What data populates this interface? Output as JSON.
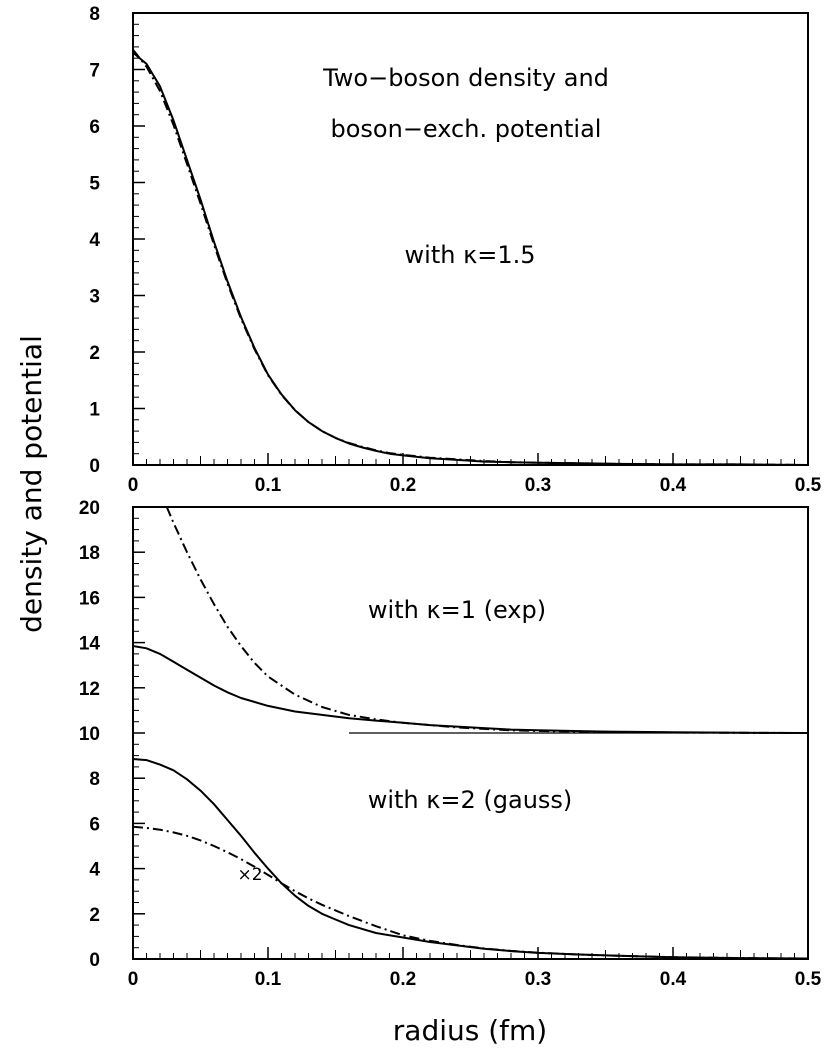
{
  "figure": {
    "ylabel": "density and potential",
    "xlabel": "radius (fm)"
  },
  "chart_data": [
    {
      "type": "line",
      "panel": "top",
      "xlim": [
        0,
        0.5
      ],
      "ylim": [
        0,
        8
      ],
      "xticks": [
        "0",
        "0.1",
        "0.2",
        "0.3",
        "0.4",
        "0.5"
      ],
      "yticks": [
        "0",
        "1",
        "2",
        "3",
        "4",
        "5",
        "6",
        "7",
        "8"
      ],
      "annotations": [
        "Two−boson density and",
        "boson−exch. potential",
        "with κ=1.5"
      ],
      "series": [
        {
          "style": "solid",
          "x": [
            0,
            0.01,
            0.02,
            0.03,
            0.04,
            0.05,
            0.06,
            0.07,
            0.08,
            0.09,
            0.1,
            0.11,
            0.12,
            0.13,
            0.14,
            0.15,
            0.16,
            0.17,
            0.18,
            0.19,
            0.2,
            0.22,
            0.24,
            0.26,
            0.28,
            0.3,
            0.33,
            0.36,
            0.4,
            0.45,
            0.5
          ],
          "y": [
            7.3,
            7.1,
            6.7,
            6.1,
            5.4,
            4.7,
            3.95,
            3.25,
            2.62,
            2.07,
            1.6,
            1.25,
            0.97,
            0.76,
            0.6,
            0.48,
            0.38,
            0.31,
            0.25,
            0.2,
            0.17,
            0.12,
            0.09,
            0.06,
            0.05,
            0.04,
            0.03,
            0.02,
            0.01,
            0.01,
            0
          ]
        },
        {
          "style": "dash-dot",
          "x": [
            0,
            0.01,
            0.02,
            0.03,
            0.04,
            0.05,
            0.06,
            0.07,
            0.08,
            0.09,
            0.1,
            0.11,
            0.12,
            0.13,
            0.14,
            0.15,
            0.16,
            0.17,
            0.18,
            0.19,
            0.2,
            0.22,
            0.24,
            0.26,
            0.28,
            0.3,
            0.33,
            0.36,
            0.4,
            0.45,
            0.5
          ],
          "y": [
            7.35,
            7.05,
            6.62,
            6.02,
            5.33,
            4.63,
            3.9,
            3.21,
            2.59,
            2.05,
            1.59,
            1.24,
            0.97,
            0.76,
            0.6,
            0.48,
            0.39,
            0.32,
            0.26,
            0.21,
            0.18,
            0.13,
            0.1,
            0.07,
            0.05,
            0.04,
            0.03,
            0.02,
            0.01,
            0.01,
            0
          ]
        }
      ]
    },
    {
      "type": "line",
      "panel": "bottom",
      "xlim": [
        0,
        0.5
      ],
      "ylim": [
        0,
        20
      ],
      "xticks": [
        "0",
        "0.1",
        "0.2",
        "0.3",
        "0.4",
        "0.5"
      ],
      "yticks": [
        "0",
        "2",
        "4",
        "6",
        "8",
        "10",
        "12",
        "14",
        "16",
        "18",
        "20"
      ],
      "annotations": [
        "with κ=1 (exp)",
        "with κ=2 (gauss)",
        "×2"
      ],
      "series": [
        {
          "style": "solid",
          "group": "exp",
          "x": [
            0,
            0.01,
            0.02,
            0.03,
            0.04,
            0.05,
            0.06,
            0.07,
            0.08,
            0.1,
            0.12,
            0.14,
            0.16,
            0.18,
            0.2,
            0.22,
            0.25,
            0.28,
            0.3,
            0.35,
            0.4,
            0.45,
            0.5
          ],
          "y": [
            13.85,
            13.75,
            13.5,
            13.15,
            12.8,
            12.45,
            12.1,
            11.8,
            11.55,
            11.2,
            10.95,
            10.8,
            10.65,
            10.55,
            10.45,
            10.35,
            10.25,
            10.15,
            10.12,
            10.06,
            10.03,
            10.01,
            10.0
          ]
        },
        {
          "style": "dash-dot",
          "group": "exp",
          "x": [
            0.025,
            0.03,
            0.04,
            0.05,
            0.06,
            0.07,
            0.08,
            0.09,
            0.1,
            0.12,
            0.14,
            0.16,
            0.18,
            0.2,
            0.22,
            0.24,
            0.26,
            0.28,
            0.3,
            0.35,
            0.4,
            0.45,
            0.5
          ],
          "y": [
            20.0,
            19.3,
            18.0,
            16.8,
            15.7,
            14.7,
            13.85,
            13.1,
            12.5,
            11.7,
            11.15,
            10.8,
            10.6,
            10.45,
            10.35,
            10.25,
            10.18,
            10.12,
            10.09,
            10.05,
            10.02,
            10.01,
            10.0
          ]
        },
        {
          "style": "thin-solid",
          "group": "exp-asymptote",
          "x": [
            0.16,
            0.5
          ],
          "y": [
            10.0,
            10.0
          ]
        },
        {
          "style": "solid",
          "group": "gauss",
          "x": [
            0,
            0.01,
            0.02,
            0.03,
            0.04,
            0.05,
            0.06,
            0.07,
            0.08,
            0.09,
            0.1,
            0.11,
            0.12,
            0.13,
            0.14,
            0.15,
            0.16,
            0.18,
            0.2,
            0.22,
            0.24,
            0.26,
            0.28,
            0.3,
            0.33,
            0.36,
            0.4,
            0.45,
            0.5
          ],
          "y": [
            8.85,
            8.8,
            8.6,
            8.35,
            7.95,
            7.45,
            6.85,
            6.15,
            5.45,
            4.7,
            4.0,
            3.35,
            2.8,
            2.35,
            2.0,
            1.75,
            1.5,
            1.15,
            0.95,
            0.75,
            0.6,
            0.45,
            0.35,
            0.27,
            0.2,
            0.14,
            0.08,
            0.04,
            0.02
          ]
        },
        {
          "style": "dash-dot",
          "group": "gauss",
          "x": [
            0,
            0.01,
            0.02,
            0.03,
            0.04,
            0.05,
            0.06,
            0.07,
            0.08,
            0.09,
            0.1,
            0.11,
            0.12,
            0.13,
            0.14,
            0.15,
            0.16,
            0.18,
            0.2,
            0.22,
            0.24,
            0.26,
            0.28,
            0.3,
            0.33,
            0.36,
            0.4,
            0.45,
            0.5
          ],
          "y": [
            5.85,
            5.8,
            5.72,
            5.6,
            5.45,
            5.25,
            5.0,
            4.72,
            4.42,
            4.08,
            3.72,
            3.35,
            3.0,
            2.68,
            2.4,
            2.15,
            1.9,
            1.45,
            1.05,
            0.8,
            0.62,
            0.47,
            0.36,
            0.28,
            0.2,
            0.14,
            0.08,
            0.04,
            0.02
          ]
        }
      ]
    }
  ]
}
